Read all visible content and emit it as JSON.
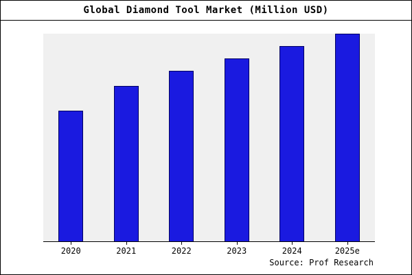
{
  "title": "Global Diamond Tool Market (Million USD)",
  "source": "Source: Prof Research",
  "colors": {
    "bar_fill": "#1a1ae0",
    "bar_border": "#000060",
    "plot_bg": "#f0f0f0",
    "frame_border": "#000000"
  },
  "chart_data": {
    "type": "bar",
    "categories": [
      "2020",
      "2021",
      "2022",
      "2023",
      "2024",
      "2025e"
    ],
    "values": [
      63,
      75,
      82,
      88,
      94,
      100
    ],
    "title": "Global Diamond Tool Market (Million USD)",
    "xlabel": "",
    "ylabel": "",
    "ylim": [
      0,
      100
    ],
    "grid": false,
    "legend": false,
    "annotations": [
      "Source: Prof Research"
    ]
  }
}
